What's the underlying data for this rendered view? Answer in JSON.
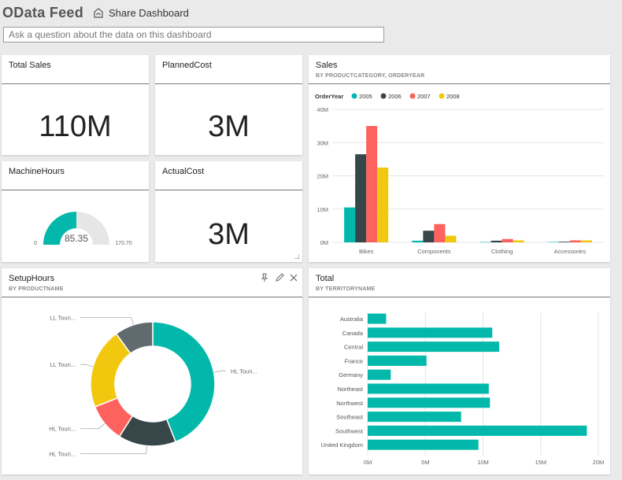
{
  "header": {
    "title": "OData Feed",
    "share_label": "Share Dashboard",
    "qa_placeholder": "Ask a question about the data on this dashboard"
  },
  "tiles": {
    "total_sales": {
      "title": "Total Sales",
      "value": "110M"
    },
    "planned_cost": {
      "title": "PlannedCost",
      "value": "3M"
    },
    "machine_hours": {
      "title": "MachineHours",
      "value": "85.35",
      "min": "0",
      "max": "170.70",
      "gauge_fraction": 0.5
    },
    "actual_cost": {
      "title": "ActualCost",
      "value": "3M"
    },
    "sales": {
      "title": "Sales",
      "subtitle": "BY PRODUCTCATEGORY, ORDERYEAR"
    },
    "setup_hours": {
      "title": "SetupHours",
      "subtitle": "BY PRODUCTNAME"
    },
    "total": {
      "title": "Total",
      "subtitle": "BY TERRITORYNAME"
    }
  },
  "colors": {
    "teal": "#01b8aa",
    "dark": "#374649",
    "red": "#fd625e",
    "yellow": "#f2c80f",
    "gray": "#5f6b6d",
    "gauge_bg": "#e6e6e6"
  },
  "chart_data": [
    {
      "type": "bar",
      "legend_title": "OrderYear",
      "categories": [
        "Bikes",
        "Components",
        "Clothing",
        "Accessories"
      ],
      "series": [
        {
          "name": "2005",
          "values": [
            10.5,
            0.5,
            0.1,
            0.1
          ]
        },
        {
          "name": "2006",
          "values": [
            26.5,
            3.5,
            0.5,
            0.2
          ]
        },
        {
          "name": "2007",
          "values": [
            35.0,
            5.5,
            1.0,
            0.6
          ]
        },
        {
          "name": "2008",
          "values": [
            22.5,
            2.0,
            0.6,
            0.6
          ]
        }
      ],
      "ylim": [
        0,
        40
      ],
      "y_ticks": [
        "0M",
        "10M",
        "20M",
        "30M",
        "40M"
      ],
      "grid": true,
      "legend_position": "top-left"
    },
    {
      "type": "pie",
      "donut": true,
      "slices": [
        {
          "label": "HL Touri...",
          "value": 44
        },
        {
          "label": "HL Touri...",
          "value": 15
        },
        {
          "label": "HL Touri...",
          "value": 10
        },
        {
          "label": "LL Touri...",
          "value": 21
        },
        {
          "label": "LL Touri...",
          "value": 10
        }
      ]
    },
    {
      "type": "bar",
      "orientation": "horizontal",
      "categories": [
        "Australia",
        "Canada",
        "Central",
        "France",
        "Germany",
        "Northeast",
        "Northwest",
        "Southeast",
        "Southwest",
        "United Kingdom"
      ],
      "values": [
        1.6,
        10.8,
        11.4,
        5.1,
        2.0,
        10.5,
        10.6,
        8.1,
        19.0,
        9.6
      ],
      "xlim": [
        0,
        20
      ],
      "x_ticks": [
        "0M",
        "5M",
        "10M",
        "15M",
        "20M"
      ],
      "grid": true
    }
  ]
}
